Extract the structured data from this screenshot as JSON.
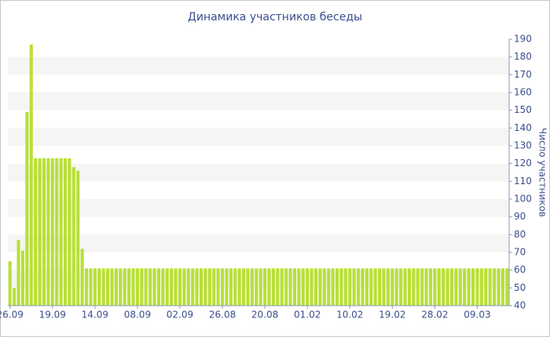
{
  "chart_data": {
    "type": "bar",
    "title": "Динамика участников беседы",
    "y_label": "Число участников",
    "categories": [
      "26.09",
      null,
      null,
      null,
      null,
      null,
      null,
      null,
      null,
      null,
      "19.09",
      null,
      null,
      null,
      null,
      null,
      null,
      null,
      null,
      null,
      "14.09",
      null,
      null,
      null,
      null,
      null,
      null,
      null,
      null,
      null,
      "08.09",
      null,
      null,
      null,
      null,
      null,
      null,
      null,
      null,
      null,
      "02.09",
      null,
      null,
      null,
      null,
      null,
      null,
      null,
      null,
      null,
      "26.08",
      null,
      null,
      null,
      null,
      null,
      null,
      null,
      null,
      null,
      "20.08",
      null,
      null,
      null,
      null,
      null,
      null,
      null,
      null,
      null,
      "01.02",
      null,
      null,
      null,
      null,
      null,
      null,
      null,
      null,
      null,
      "10.02",
      null,
      null,
      null,
      null,
      null,
      null,
      null,
      null,
      null,
      "19.02",
      null,
      null,
      null,
      null,
      null,
      null,
      null,
      null,
      null,
      "28.02",
      null,
      null,
      null,
      null,
      null,
      null,
      null,
      null,
      null,
      "09.03",
      null,
      null,
      null,
      null,
      null,
      null,
      null
    ],
    "values": [
      65,
      50,
      77,
      71,
      149,
      187,
      123,
      123,
      123,
      123,
      123,
      123,
      123,
      123,
      123,
      118,
      116,
      72,
      61,
      61,
      61,
      61,
      61,
      61,
      61,
      61,
      61,
      61,
      61,
      61,
      61,
      61,
      61,
      61,
      61,
      61,
      61,
      61,
      61,
      61,
      61,
      61,
      61,
      61,
      61,
      61,
      61,
      61,
      61,
      61,
      61,
      61,
      61,
      61,
      61,
      61,
      61,
      61,
      61,
      61,
      61,
      61,
      61,
      61,
      61,
      61,
      61,
      61,
      61,
      61,
      61,
      61,
      61,
      61,
      61,
      61,
      61,
      61,
      61,
      61,
      61,
      61,
      61,
      61,
      61,
      61,
      61,
      61,
      61,
      61,
      61,
      61,
      61,
      61,
      61,
      61,
      61,
      61,
      61,
      61,
      61,
      61,
      61,
      61,
      61,
      61,
      61,
      61,
      61,
      61,
      61,
      61,
      61,
      61,
      61,
      61,
      61,
      61
    ],
    "color": "#b8e036",
    "ylim": [
      40,
      190
    ],
    "yticks": [
      40,
      50,
      60,
      70,
      80,
      90,
      100,
      110,
      120,
      130,
      140,
      150,
      160,
      170,
      180,
      190
    ],
    "y_axis_side": "right",
    "grid": "bands"
  }
}
